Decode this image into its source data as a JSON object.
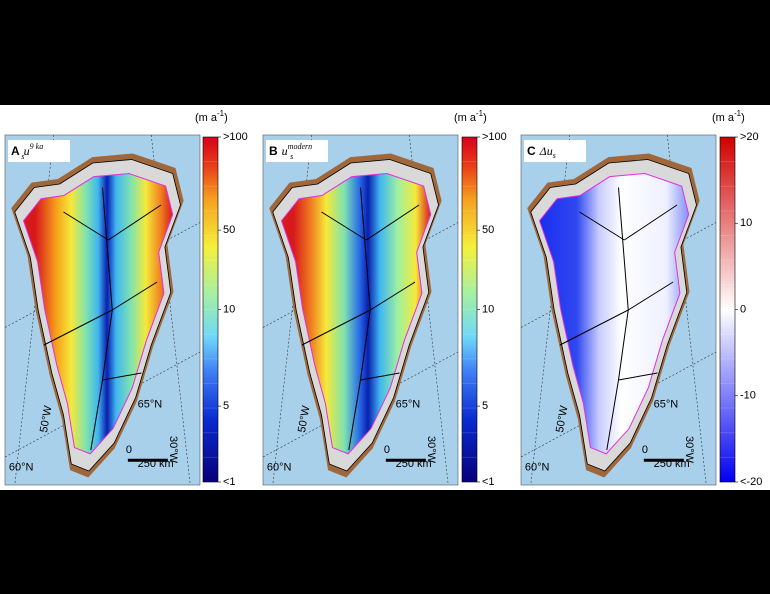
{
  "panels": [
    {
      "letter": "A",
      "symbol": "u",
      "subscript": "s",
      "superscript": "9 ka",
      "unit": "(m a",
      "unit_sup": "-1",
      "unit_close": ")",
      "colorbar_ticks": [
        ">100",
        "50",
        "10",
        "5",
        "<1"
      ]
    },
    {
      "letter": "B",
      "symbol": "u",
      "subscript": "s",
      "superscript": "modern",
      "unit": "(m a",
      "unit_sup": "-1",
      "unit_close": ")",
      "colorbar_ticks": [
        ">100",
        "50",
        "10",
        "5",
        "<1"
      ]
    },
    {
      "letter": "C",
      "symbol": "Δu",
      "subscript": "s",
      "unit": "(m a",
      "unit_sup": "-1",
      "unit_close": ")",
      "colorbar_ticks": [
        ">20",
        "10",
        "0",
        "-10",
        "<-20"
      ]
    }
  ],
  "map_labels": {
    "lat_60": "60°N",
    "lon_50": "50°W",
    "lat_65": "65°N",
    "lon_30": "30°W",
    "scale_zero": "0",
    "scale_distance": "250 km"
  }
}
